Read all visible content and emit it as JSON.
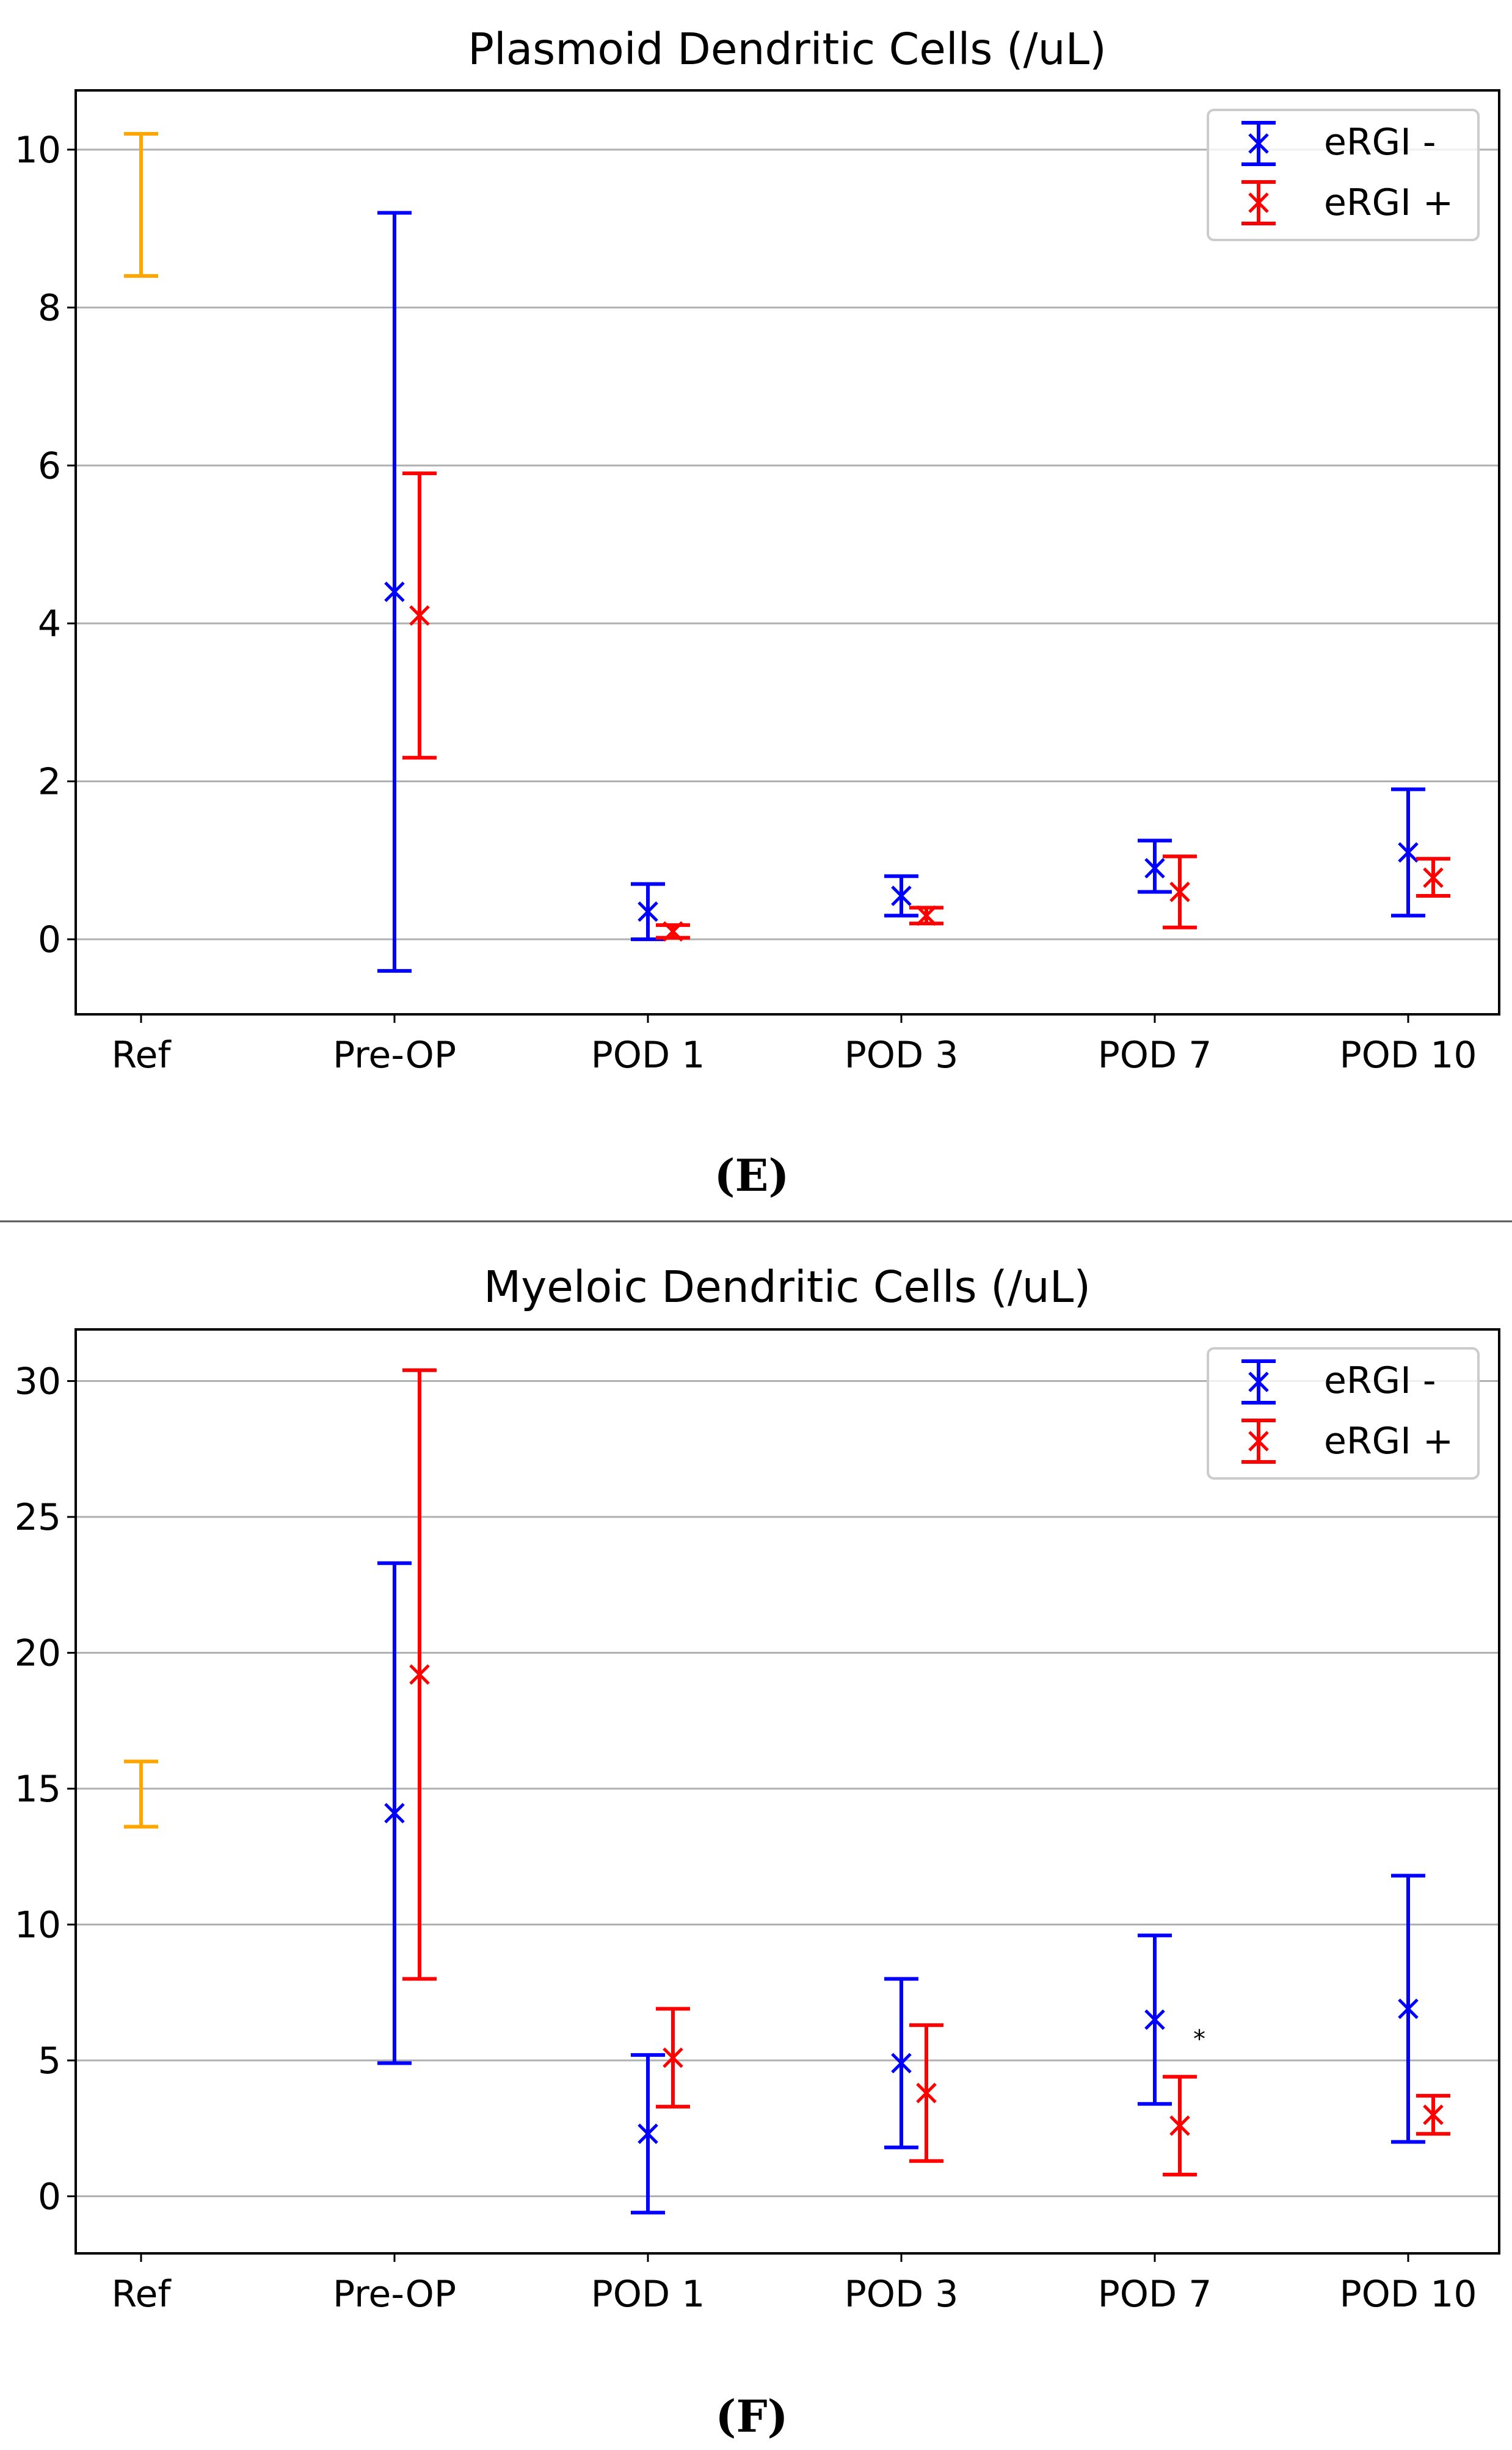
{
  "chart_data": [
    {
      "type": "errorbar",
      "title": "Plasmoid Dendritic Cells (/uL)",
      "panel_label": "(E)",
      "categories": [
        "Ref",
        "Pre-OP",
        "POD 1",
        "POD 3",
        "POD 7",
        "POD 10"
      ],
      "ylim": [
        -0.95,
        10.75
      ],
      "yticks": [
        0,
        2,
        4,
        6,
        8,
        10
      ],
      "grid": true,
      "legend_position": "top-right",
      "reference": {
        "name": "Ref",
        "color": "#FFA500",
        "low": 8.4,
        "high": 10.2
      },
      "series": [
        {
          "name": "eRGI -",
          "color": "#0000FF",
          "points": [
            {
              "category": "Pre-OP",
              "mean": 4.4,
              "low": -0.4,
              "high": 9.2
            },
            {
              "category": "POD 1",
              "mean": 0.35,
              "low": 0.0,
              "high": 0.7
            },
            {
              "category": "POD 3",
              "mean": 0.55,
              "low": 0.3,
              "high": 0.8
            },
            {
              "category": "POD 7",
              "mean": 0.9,
              "low": 0.6,
              "high": 1.25
            },
            {
              "category": "POD 10",
              "mean": 1.1,
              "low": 0.3,
              "high": 1.9
            }
          ]
        },
        {
          "name": "eRGI +",
          "color": "#FF0000",
          "points": [
            {
              "category": "Pre-OP",
              "mean": 4.1,
              "low": 2.3,
              "high": 5.9
            },
            {
              "category": "POD 1",
              "mean": 0.1,
              "low": 0.02,
              "high": 0.18
            },
            {
              "category": "POD 3",
              "mean": 0.3,
              "low": 0.2,
              "high": 0.4
            },
            {
              "category": "POD 7",
              "mean": 0.6,
              "low": 0.15,
              "high": 1.05
            },
            {
              "category": "POD 10",
              "mean": 0.78,
              "low": 0.55,
              "high": 1.02
            }
          ]
        }
      ],
      "annotations": []
    },
    {
      "type": "errorbar",
      "title": "Myeloic Dendritic Cells (/uL)",
      "panel_label": "(F)",
      "categories": [
        "Ref",
        "Pre-OP",
        "POD 1",
        "POD 3",
        "POD 7",
        "POD 10"
      ],
      "ylim": [
        -2.1,
        31.9
      ],
      "yticks": [
        0,
        5,
        10,
        15,
        20,
        25,
        30
      ],
      "grid": true,
      "legend_position": "top-right",
      "reference": {
        "name": "Ref",
        "color": "#FFA500",
        "low": 13.6,
        "high": 16.0
      },
      "series": [
        {
          "name": "eRGI -",
          "color": "#0000FF",
          "points": [
            {
              "category": "Pre-OP",
              "mean": 14.1,
              "low": 4.9,
              "high": 23.3
            },
            {
              "category": "POD 1",
              "mean": 2.3,
              "low": -0.6,
              "high": 5.2
            },
            {
              "category": "POD 3",
              "mean": 4.9,
              "low": 1.8,
              "high": 8.0
            },
            {
              "category": "POD 7",
              "mean": 6.5,
              "low": 3.4,
              "high": 9.6
            },
            {
              "category": "POD 10",
              "mean": 6.9,
              "low": 2.0,
              "high": 11.8
            }
          ]
        },
        {
          "name": "eRGI +",
          "color": "#FF0000",
          "points": [
            {
              "category": "Pre-OP",
              "mean": 19.2,
              "low": 8.0,
              "high": 30.4
            },
            {
              "category": "POD 1",
              "mean": 5.1,
              "low": 3.3,
              "high": 6.9
            },
            {
              "category": "POD 3",
              "mean": 3.8,
              "low": 1.3,
              "high": 6.3
            },
            {
              "category": "POD 7",
              "mean": 2.6,
              "low": 0.8,
              "high": 4.4
            },
            {
              "category": "POD 10",
              "mean": 3.0,
              "low": 2.3,
              "high": 3.7
            }
          ]
        }
      ],
      "annotations": [
        {
          "text": "*",
          "category": "POD 7",
          "series": "eRGI +",
          "y": 5.8
        }
      ]
    }
  ]
}
